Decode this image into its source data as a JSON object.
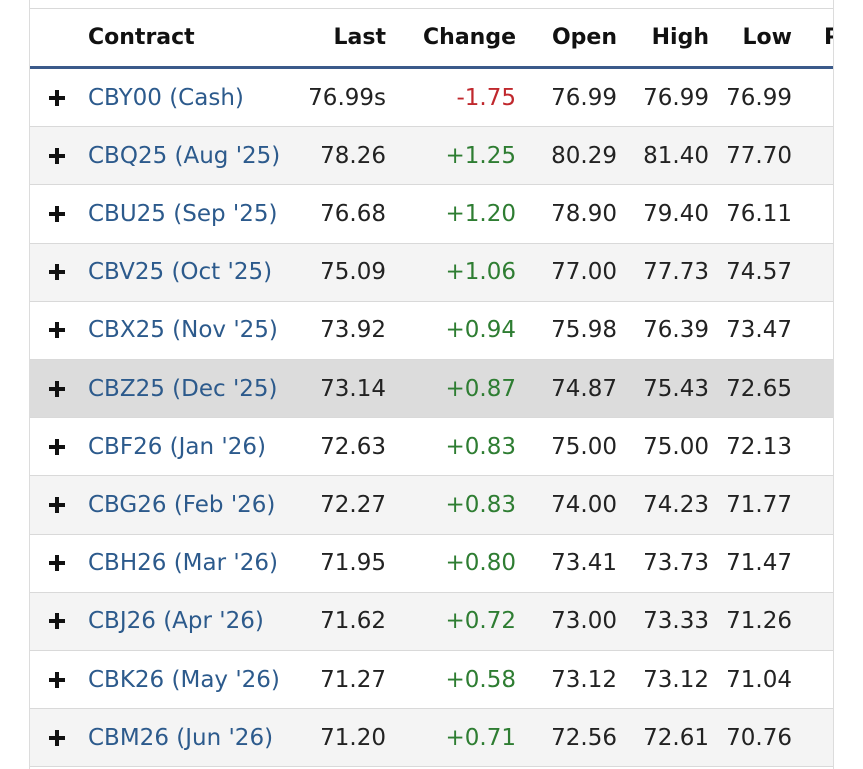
{
  "table": {
    "headers": {
      "contract": "Contract",
      "last": "Last",
      "change": "Change",
      "open": "Open",
      "high": "High",
      "low": "Low",
      "prior": "P"
    },
    "rows": [
      {
        "contract": "CBY00 (Cash)",
        "last": "76.99s",
        "change": "-1.75",
        "direction": "down",
        "open": "76.99",
        "high": "76.99",
        "low": "76.99"
      },
      {
        "contract": "CBQ25 (Aug '25)",
        "last": "78.26",
        "change": "+1.25",
        "direction": "up",
        "open": "80.29",
        "high": "81.40",
        "low": "77.70"
      },
      {
        "contract": "CBU25 (Sep '25)",
        "last": "76.68",
        "change": "+1.20",
        "direction": "up",
        "open": "78.90",
        "high": "79.40",
        "low": "76.11"
      },
      {
        "contract": "CBV25 (Oct '25)",
        "last": "75.09",
        "change": "+1.06",
        "direction": "up",
        "open": "77.00",
        "high": "77.73",
        "low": "74.57"
      },
      {
        "contract": "CBX25 (Nov '25)",
        "last": "73.92",
        "change": "+0.94",
        "direction": "up",
        "open": "75.98",
        "high": "76.39",
        "low": "73.47"
      },
      {
        "contract": "CBZ25 (Dec '25)",
        "last": "73.14",
        "change": "+0.87",
        "direction": "up",
        "open": "74.87",
        "high": "75.43",
        "low": "72.65"
      },
      {
        "contract": "CBF26 (Jan '26)",
        "last": "72.63",
        "change": "+0.83",
        "direction": "up",
        "open": "75.00",
        "high": "75.00",
        "low": "72.13"
      },
      {
        "contract": "CBG26 (Feb '26)",
        "last": "72.27",
        "change": "+0.83",
        "direction": "up",
        "open": "74.00",
        "high": "74.23",
        "low": "71.77"
      },
      {
        "contract": "CBH26 (Mar '26)",
        "last": "71.95",
        "change": "+0.80",
        "direction": "up",
        "open": "73.41",
        "high": "73.73",
        "low": "71.47"
      },
      {
        "contract": "CBJ26 (Apr '26)",
        "last": "71.62",
        "change": "+0.72",
        "direction": "up",
        "open": "73.00",
        "high": "73.33",
        "low": "71.26"
      },
      {
        "contract": "CBK26 (May '26)",
        "last": "71.27",
        "change": "+0.58",
        "direction": "up",
        "open": "73.12",
        "high": "73.12",
        "low": "71.04"
      },
      {
        "contract": "CBM26 (Jun '26)",
        "last": "71.20",
        "change": "+0.71",
        "direction": "up",
        "open": "72.56",
        "high": "72.61",
        "low": "70.76"
      }
    ],
    "highlighted_row": 5,
    "expand_icon": "plus-icon",
    "colors": {
      "link": "#2c5a8c",
      "negative": "#c0282d",
      "positive": "#2e7d32",
      "header_rule": "#3b5a8a",
      "row_alt": "#f4f4f4",
      "row_highlight": "#dcdcdc"
    }
  }
}
